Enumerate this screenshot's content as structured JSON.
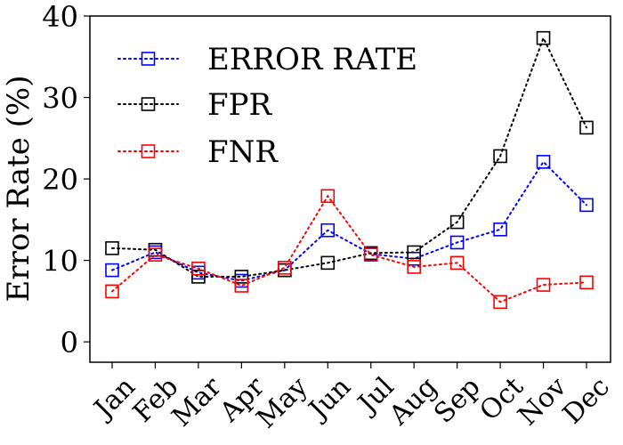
{
  "chart_data": {
    "type": "line",
    "title": "",
    "xlabel": "",
    "ylabel": "Error Rate (%)",
    "ylim": [
      -2.5,
      40
    ],
    "yticks": [
      0,
      10,
      20,
      30,
      40
    ],
    "categories": [
      "Jan",
      "Feb",
      "Mar",
      "Apr",
      "May",
      "Jun",
      "Jul",
      "Aug",
      "Sep",
      "Oct",
      "Nov",
      "Dec"
    ],
    "grid": false,
    "legend_position": "top-left",
    "series": [
      {
        "name": "ERROR RATE",
        "color": "#0000ff",
        "line_style": "dotted",
        "marker": "square-open",
        "values": [
          8.8,
          11.0,
          8.5,
          7.5,
          8.8,
          13.7,
          10.8,
          10.2,
          12.2,
          13.8,
          22.1,
          16.8
        ]
      },
      {
        "name": "FPR",
        "color": "#000000",
        "line_style": "dotted",
        "marker": "square-open",
        "values": [
          11.5,
          11.3,
          8.0,
          8.0,
          8.8,
          9.7,
          10.9,
          11.0,
          14.7,
          22.8,
          37.3,
          26.3
        ]
      },
      {
        "name": "FNR",
        "color": "#ff0000",
        "line_style": "dotted",
        "marker": "square-open",
        "values": [
          6.2,
          10.7,
          9.0,
          6.9,
          9.1,
          17.9,
          10.7,
          9.2,
          9.7,
          4.9,
          7.0,
          7.3
        ]
      }
    ]
  }
}
